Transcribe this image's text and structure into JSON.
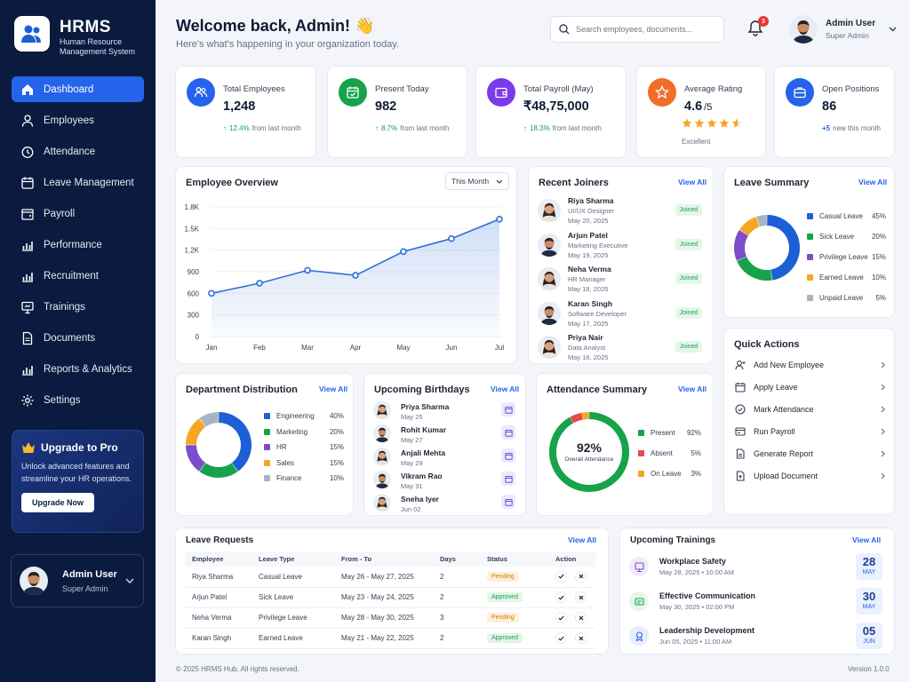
{
  "brand": {
    "title": "HRMS",
    "subtitle": "Human Resource Management System"
  },
  "nav": [
    {
      "label": "Dashboard",
      "icon": "home-icon",
      "active": true
    },
    {
      "label": "Employees",
      "icon": "user-icon"
    },
    {
      "label": "Attendance",
      "icon": "clock-icon"
    },
    {
      "label": "Leave Management",
      "icon": "calendar-icon"
    },
    {
      "label": "Payroll",
      "icon": "wallet-icon"
    },
    {
      "label": "Performance",
      "icon": "bar-chart-icon"
    },
    {
      "label": "Recruitment",
      "icon": "bar-chart-icon"
    },
    {
      "label": "Trainings",
      "icon": "presentation-icon"
    },
    {
      "label": "Documents",
      "icon": "document-icon"
    },
    {
      "label": "Reports & Analytics",
      "icon": "bar-chart-icon"
    },
    {
      "label": "Settings",
      "icon": "gear-icon"
    }
  ],
  "upgrade": {
    "title": "Upgrade to Pro",
    "desc": "Unlock advanced features and streamline your HR operations.",
    "button": "Upgrade Now"
  },
  "sidebar_user": {
    "name": "Admin User",
    "role": "Super Admin"
  },
  "header": {
    "title": "Welcome back, Admin! 👋",
    "subtitle": "Here's what's happening in your organization today.",
    "search_placeholder": "Search employees, documents...",
    "notifications": "3",
    "user_name": "Admin User",
    "user_role": "Super Admin"
  },
  "stats": [
    {
      "label": "Total Employees",
      "value": "1,248",
      "change": "12.4%",
      "note": "from last month",
      "color": "#2563eb"
    },
    {
      "label": "Present Today",
      "value": "982",
      "change": "8.7%",
      "note": "from last month",
      "color": "#16a34a"
    },
    {
      "label": "Total Payroll (May)",
      "value": "₹48,75,000",
      "change": "18.3%",
      "note": "from last month",
      "color": "#7c3aed"
    },
    {
      "label": "Average Rating",
      "value": "4.6",
      "value_suffix": "/5",
      "rating": 4.6,
      "note": "Excellent",
      "color": "#f06d2a"
    },
    {
      "label": "Open Positions",
      "value": "86",
      "change": "+5",
      "note": "new this month",
      "color": "#2563eb"
    }
  ],
  "overview": {
    "title": "Employee Overview",
    "filter": "This Month"
  },
  "chart_data": {
    "type": "area",
    "title": "Employee Overview",
    "categories": [
      "Jan",
      "Feb",
      "Mar",
      "Apr",
      "May",
      "Jun",
      "Jul"
    ],
    "values": [
      600,
      740,
      920,
      850,
      1180,
      1360,
      1630
    ],
    "yticks": [
      "1.8K",
      "1.5K",
      "1.2K",
      "900",
      "600",
      "300",
      "0"
    ],
    "ylim": [
      0,
      1800
    ],
    "grid": true,
    "color": "#2f6fd6"
  },
  "joiners": {
    "title": "Recent Joiners",
    "view_all": "View All",
    "items": [
      {
        "name": "Riya Sharma",
        "role": "UI/UX Designer",
        "date": "May 20, 2025",
        "status": "Joined",
        "gender": "f"
      },
      {
        "name": "Arjun Patel",
        "role": "Marketing Executive",
        "date": "May 19, 2025",
        "status": "Joined",
        "gender": "m"
      },
      {
        "name": "Neha Verma",
        "role": "HR Manager",
        "date": "May 18, 2025",
        "status": "Joined",
        "gender": "f"
      },
      {
        "name": "Karan Singh",
        "role": "Software Developer",
        "date": "May 17, 2025",
        "status": "Joined",
        "gender": "m"
      },
      {
        "name": "Priya Nair",
        "role": "Data Analyst",
        "date": "May 16, 2025",
        "status": "Joined",
        "gender": "f"
      }
    ]
  },
  "leave_summary": {
    "title": "Leave Summary",
    "view_all": "View All",
    "items": [
      {
        "label": "Casual Leave",
        "pct": 45,
        "color": "#1d5fd6"
      },
      {
        "label": "Sick Leave",
        "pct": 20,
        "color": "#16a34a"
      },
      {
        "label": "Privilege Leave",
        "pct": 15,
        "color": "#7c4dcc"
      },
      {
        "label": "Earned Leave",
        "pct": 10,
        "color": "#f5a623"
      },
      {
        "label": "Unpaid Leave",
        "pct": 5,
        "color": "#a9b4c2"
      }
    ]
  },
  "quick_actions": {
    "title": "Quick Actions",
    "items": [
      {
        "label": "Add New Employee",
        "icon": "user-plus-icon"
      },
      {
        "label": "Apply Leave",
        "icon": "calendar-icon"
      },
      {
        "label": "Mark Attendance",
        "icon": "check-circle-icon"
      },
      {
        "label": "Run Payroll",
        "icon": "payroll-icon"
      },
      {
        "label": "Generate Report",
        "icon": "report-icon"
      },
      {
        "label": "Upload Document",
        "icon": "upload-icon"
      }
    ]
  },
  "departments": {
    "title": "Department Distribution",
    "view_all": "View All",
    "items": [
      {
        "label": "Engineering",
        "pct": 40,
        "color": "#1d5fd6"
      },
      {
        "label": "Marketing",
        "pct": 20,
        "color": "#16a34a"
      },
      {
        "label": "HR",
        "pct": 15,
        "color": "#7c4dcc"
      },
      {
        "label": "Sales",
        "pct": 15,
        "color": "#f5a623"
      },
      {
        "label": "Finance",
        "pct": 10,
        "color": "#a9b4c2"
      }
    ]
  },
  "birthdays": {
    "title": "Upcoming Birthdays",
    "view_all": "View All",
    "items": [
      {
        "name": "Priya Sharma",
        "date": "May 25",
        "gender": "f"
      },
      {
        "name": "Rohit Kumar",
        "date": "May 27",
        "gender": "m"
      },
      {
        "name": "Anjali Mehta",
        "date": "May 29",
        "gender": "f"
      },
      {
        "name": "Vikram Rao",
        "date": "May 31",
        "gender": "m"
      },
      {
        "name": "Sneha Iyer",
        "date": "Jun 02",
        "gender": "f"
      }
    ]
  },
  "attendance": {
    "title": "Attendance Summary",
    "view_all": "View All",
    "center_value": "92%",
    "center_label": "Overall Attendance",
    "items": [
      {
        "label": "Present",
        "pct": 92,
        "color": "#16a34a"
      },
      {
        "label": "Absent",
        "pct": 5,
        "color": "#e5484d"
      },
      {
        "label": "On Leave",
        "pct": 3,
        "color": "#f5a623"
      }
    ]
  },
  "leave_requests": {
    "title": "Leave Requests",
    "view_all": "View All",
    "columns": [
      "Employee",
      "Leave Type",
      "From - To",
      "Days",
      "Status",
      "Action"
    ],
    "rows": [
      {
        "employee": "Riya Sharma",
        "type": "Casual Leave",
        "range": "May 26 - May 27, 2025",
        "days": "2",
        "status": "Pending"
      },
      {
        "employee": "Arjun Patel",
        "type": "Sick Leave",
        "range": "May 23 - May 24, 2025",
        "days": "2",
        "status": "Approved"
      },
      {
        "employee": "Neha Verma",
        "type": "Privilege Leave",
        "range": "May 28 - May 30, 2025",
        "days": "3",
        "status": "Pending"
      },
      {
        "employee": "Karan Singh",
        "type": "Earned Leave",
        "range": "May 21 - May 22, 2025",
        "days": "2",
        "status": "Approved"
      }
    ]
  },
  "trainings": {
    "title": "Upcoming Trainings",
    "view_all": "View All",
    "items": [
      {
        "name": "Workplace Safety",
        "date": "May 28, 2025 • 10:00 AM",
        "day": "28",
        "month": "MAY",
        "color": "#7c4dcc",
        "bg": "#efeafb"
      },
      {
        "name": "Effective Communication",
        "date": "May 30, 2025 • 02:00 PM",
        "day": "30",
        "month": "MAY",
        "color": "#16a34a",
        "bg": "#e5f6ea"
      },
      {
        "name": "Leadership Development",
        "date": "Jun 05, 2025 • 11:00 AM",
        "day": "05",
        "month": "JUN",
        "color": "#2563eb",
        "bg": "#e6eefc"
      }
    ]
  },
  "footer": {
    "copyright": "© 2025 HRMS Hub. All rights reserved.",
    "version": "Version 1.0.0"
  }
}
